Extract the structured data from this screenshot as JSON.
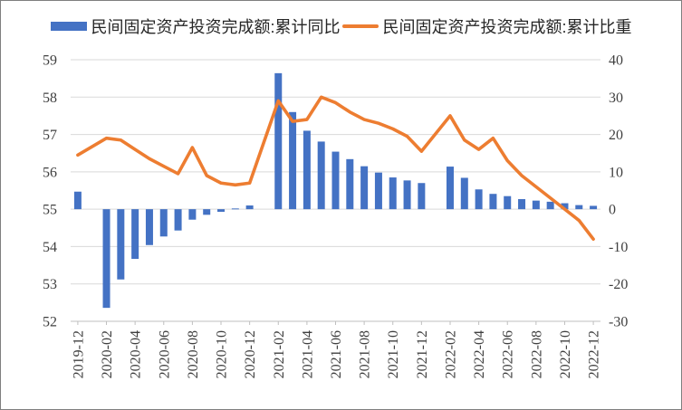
{
  "legend": [
    {
      "label": "民间固定资产投资完成额:累计同比",
      "swatch": "bar-swatch",
      "color": "#4472C4"
    },
    {
      "label": "民间固定资产投资完成额:累计比重",
      "swatch": "line-swatch",
      "color": "#ED7D31"
    }
  ],
  "chart_data": {
    "type": "combo",
    "title": "",
    "legend_position": "top-center",
    "grid": "horizontal",
    "left_axis": {
      "min": 52,
      "max": 59,
      "ticks": [
        59,
        58,
        57,
        56,
        55,
        54,
        53,
        52
      ],
      "series": "累计比重"
    },
    "right_axis": {
      "min": -30,
      "max": 40,
      "ticks": [
        40,
        30,
        20,
        10,
        0,
        -10,
        -20,
        -30
      ],
      "series": "累计同比"
    },
    "x_label_every": 2,
    "series": [
      {
        "name": "民间固定资产投资完成额:累计同比",
        "type": "bar",
        "axis": "right",
        "color": "#4472C4",
        "key": "yoy"
      },
      {
        "name": "民间固定资产投资完成额:累计比重",
        "type": "line",
        "axis": "left",
        "color": "#ED7D31",
        "key": "share"
      }
    ],
    "slots": [
      {
        "month": "2019-12",
        "yoy": 4.7,
        "share": 56.45
      },
      {
        "month": "2020-01",
        "yoy": null,
        "share": null
      },
      {
        "month": "2020-02",
        "yoy": -26.4,
        "share": 56.9
      },
      {
        "month": "2020-03",
        "yoy": -18.8,
        "share": 56.85
      },
      {
        "month": "2020-04",
        "yoy": -13.3,
        "share": 56.6
      },
      {
        "month": "2020-05",
        "yoy": -9.6,
        "share": 56.35
      },
      {
        "month": "2020-06",
        "yoy": -7.3,
        "share": 56.15
      },
      {
        "month": "2020-07",
        "yoy": -5.7,
        "share": 55.95
      },
      {
        "month": "2020-08",
        "yoy": -2.8,
        "share": 56.65
      },
      {
        "month": "2020-09",
        "yoy": -1.5,
        "share": 55.9
      },
      {
        "month": "2020-10",
        "yoy": -0.7,
        "share": 55.7
      },
      {
        "month": "2020-11",
        "yoy": 0.2,
        "share": 55.65
      },
      {
        "month": "2020-12",
        "yoy": 1.0,
        "share": 55.7
      },
      {
        "month": "2021-01",
        "yoy": null,
        "share": null
      },
      {
        "month": "2021-02",
        "yoy": 36.4,
        "share": 57.9
      },
      {
        "month": "2021-03",
        "yoy": 26.0,
        "share": 57.35
      },
      {
        "month": "2021-04",
        "yoy": 21.0,
        "share": 57.4
      },
      {
        "month": "2021-05",
        "yoy": 18.1,
        "share": 58.0
      },
      {
        "month": "2021-06",
        "yoy": 15.4,
        "share": 57.85
      },
      {
        "month": "2021-07",
        "yoy": 13.4,
        "share": 57.6
      },
      {
        "month": "2021-08",
        "yoy": 11.5,
        "share": 57.4
      },
      {
        "month": "2021-09",
        "yoy": 9.8,
        "share": 57.3
      },
      {
        "month": "2021-10",
        "yoy": 8.5,
        "share": 57.15
      },
      {
        "month": "2021-11",
        "yoy": 7.7,
        "share": 56.95
      },
      {
        "month": "2021-12",
        "yoy": 7.0,
        "share": 56.55
      },
      {
        "month": "2022-01",
        "yoy": null,
        "share": null
      },
      {
        "month": "2022-02",
        "yoy": 11.4,
        "share": 57.5
      },
      {
        "month": "2022-03",
        "yoy": 8.4,
        "share": 56.85
      },
      {
        "month": "2022-04",
        "yoy": 5.3,
        "share": 56.6
      },
      {
        "month": "2022-05",
        "yoy": 4.1,
        "share": 56.9
      },
      {
        "month": "2022-06",
        "yoy": 3.5,
        "share": 56.3
      },
      {
        "month": "2022-07",
        "yoy": 2.7,
        "share": 55.9
      },
      {
        "month": "2022-08",
        "yoy": 2.3,
        "share": 55.6
      },
      {
        "month": "2022-09",
        "yoy": 2.0,
        "share": 55.3
      },
      {
        "month": "2022-10",
        "yoy": 1.6,
        "share": 55.0
      },
      {
        "month": "2022-11",
        "yoy": 1.1,
        "share": 54.7
      },
      {
        "month": "2022-12",
        "yoy": 0.9,
        "share": 54.2
      }
    ],
    "colors": {
      "bar": "#4472C4",
      "line": "#ED7D31",
      "gridline": "#D9D9D9",
      "axis_line": "#BFBFBF",
      "tick_text": "#404040"
    }
  }
}
